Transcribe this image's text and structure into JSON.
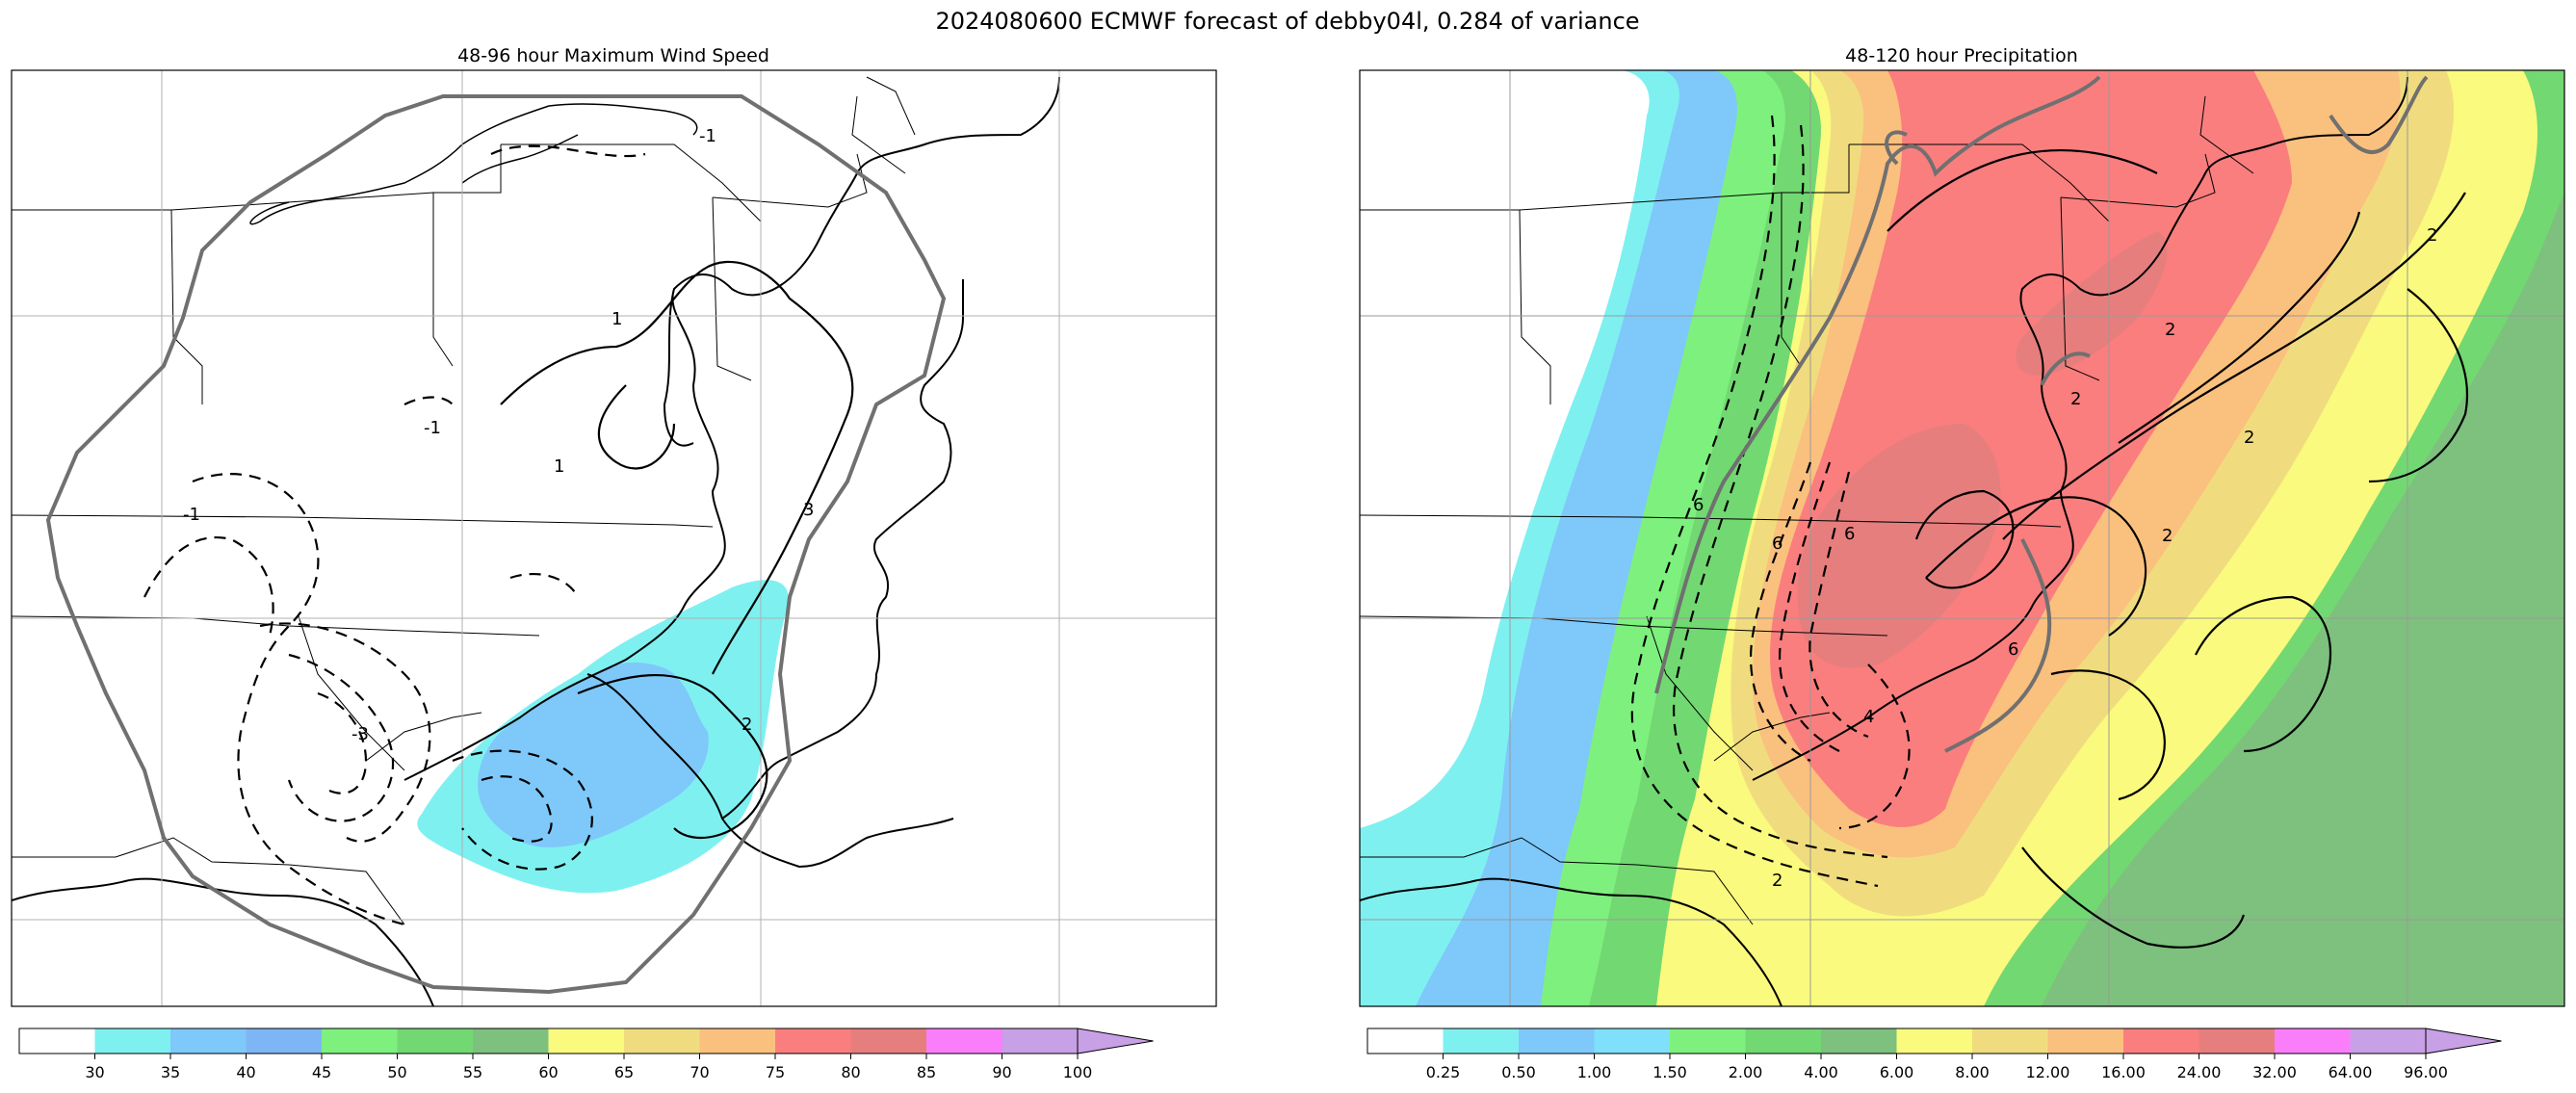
{
  "figure": {
    "title": "2024080600 ECMWF forecast of debby04l, 0.284 of variance"
  },
  "chart_data": [
    {
      "type": "map",
      "title": "48-96 hour Maximum Wind Speed",
      "colorbar": {
        "ticks": [
          "30",
          "35",
          "40",
          "45",
          "50",
          "55",
          "60",
          "65",
          "70",
          "75",
          "80",
          "85",
          "90",
          "100"
        ],
        "colors": [
          "#ffffff",
          "#7ff0f0",
          "#7ec8fa",
          "#7eb6f5",
          "#7ef07e",
          "#72d872",
          "#7ec07e",
          "#fafa7e",
          "#f0dc7e",
          "#fac07e",
          "#fa7e7e",
          "#e67e7e",
          "#fa7efa",
          "#c8a0e6"
        ],
        "extend": "max"
      },
      "contour_labels": [
        "-1",
        "1",
        "1",
        "-1",
        "-3",
        "3",
        "-1",
        "2"
      ]
    },
    {
      "type": "map",
      "title": "48-120 hour Precipitation",
      "colorbar": {
        "ticks": [
          "0.25",
          "0.50",
          "1.00",
          "1.50",
          "2.00",
          "4.00",
          "6.00",
          "8.00",
          "12.00",
          "16.00",
          "24.00",
          "32.00",
          "64.00",
          "96.00"
        ],
        "colors": [
          "#ffffff",
          "#7ff0f0",
          "#7ec8fa",
          "#7ee0fa",
          "#7ef07e",
          "#72d872",
          "#7ec07e",
          "#fafa7e",
          "#f0dc7e",
          "#fac07e",
          "#fa7e7e",
          "#e67e7e",
          "#fa7efa",
          "#c8a0e6"
        ],
        "extend": "max"
      },
      "contour_labels": [
        "6",
        "2",
        "6",
        "6",
        "2",
        "2",
        "2",
        "2",
        "6",
        "4",
        "2"
      ]
    }
  ]
}
